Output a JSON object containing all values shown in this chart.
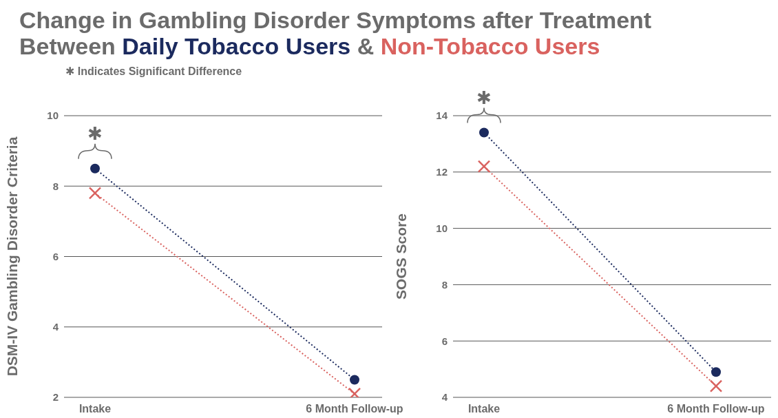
{
  "chart_data": [
    {
      "type": "line",
      "title": "Change in Gambling Disorder Symptoms after Treatment",
      "subtitle": "Between",
      "ylabel": "DSM-IV Gambling Disorder Criteria",
      "categories": [
        "Intake",
        "6 Month Follow-up"
      ],
      "series": [
        {
          "name": "Daily Tobacco Users",
          "color": "#1b2a5e",
          "values": [
            8.5,
            2.5
          ],
          "marker": "circle"
        },
        {
          "name": "Non-Tobacco Users",
          "color": "#d9625f",
          "values": [
            7.8,
            2.1
          ],
          "marker": "cross"
        }
      ],
      "ylim": [
        2,
        10
      ],
      "yticks": [
        2,
        4,
        6,
        8,
        10
      ],
      "grid": "y",
      "legend": "top",
      "line_style": "dotted",
      "annotations": [
        "&",
        "✱ Indicates Significant Difference",
        {
          "text": "✱",
          "x": "Intake",
          "y": 8.5
        }
      ]
    },
    {
      "type": "line",
      "ylabel": "SOGS Score",
      "categories": [
        "Intake",
        "6 Month Follow-up"
      ],
      "series": [
        {
          "color": "#1b2a5e",
          "values": [
            13.4,
            4.9
          ],
          "marker": "circle"
        },
        {
          "color": "#d9625f",
          "values": [
            12.2,
            4.4
          ],
          "marker": "cross"
        }
      ],
      "ylim": [
        4,
        14
      ],
      "yticks": [
        4,
        6,
        8,
        10,
        12,
        14
      ],
      "grid": "y",
      "line_style": "dotted",
      "annotations": [
        {
          "text": "✱",
          "x": "Intake",
          "y": 13.4
        }
      ]
    }
  ]
}
